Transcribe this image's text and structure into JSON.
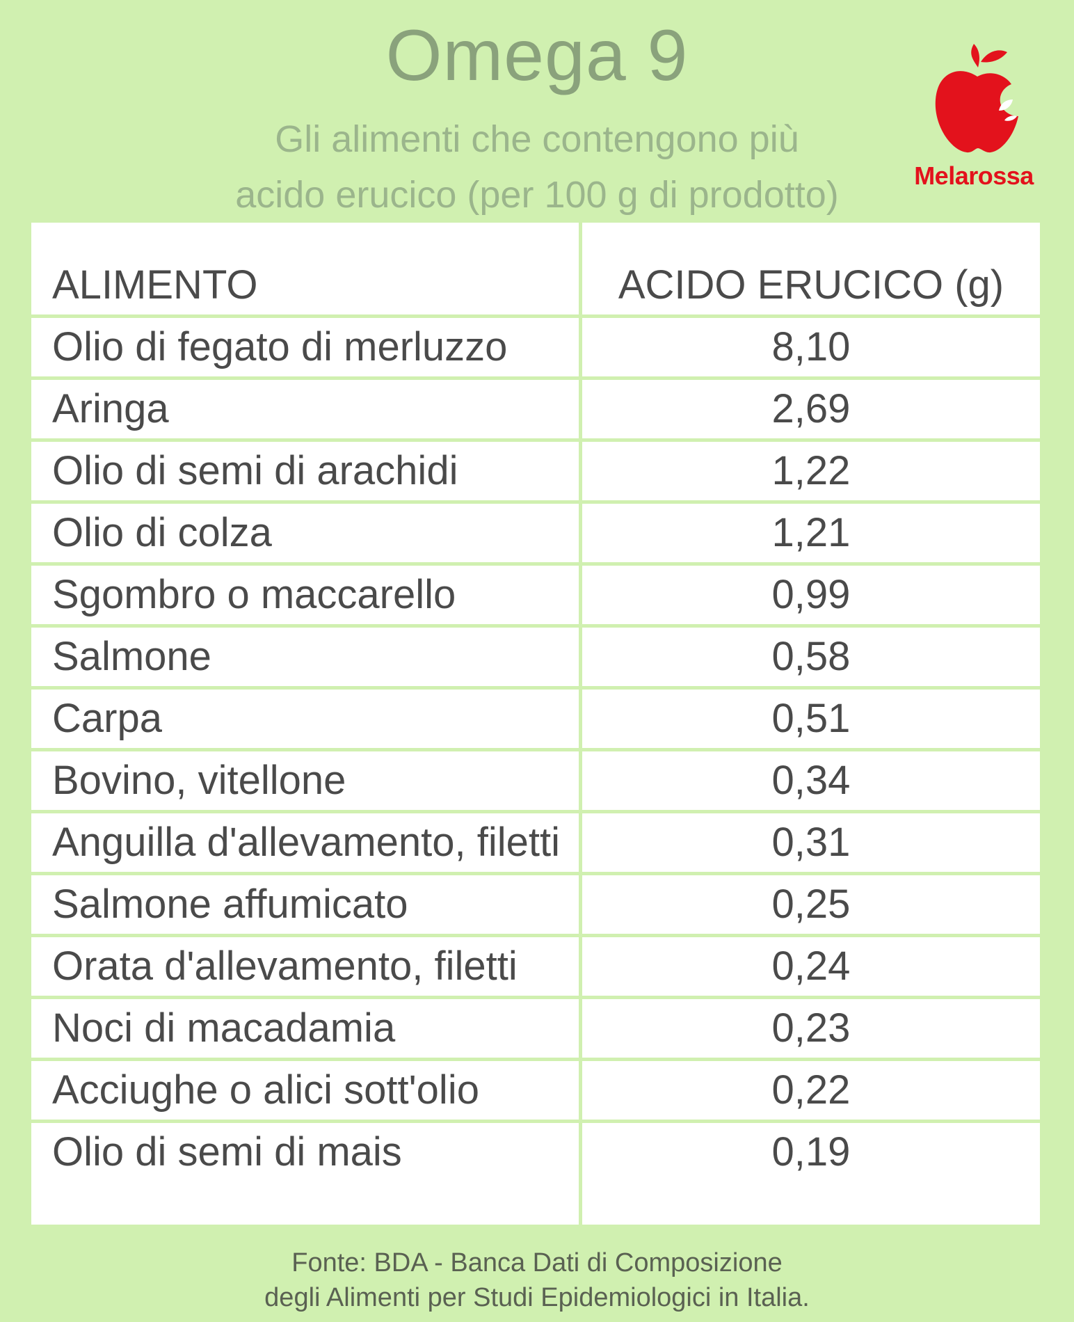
{
  "title": "Omega 9",
  "subtitle_line1": "Gli alimenti che contengono più",
  "subtitle_line2": "acido erucico (per 100 g di prodotto)",
  "logo": {
    "text": "Melarossa",
    "icon": "apple-icon",
    "color": "#e3121c"
  },
  "table": {
    "headers": [
      "ALIMENTO",
      "ACIDO ERUCICO (g)"
    ],
    "rows": [
      {
        "food": "Olio di fegato di merluzzo",
        "value": "8,10"
      },
      {
        "food": "Aringa",
        "value": "2,69"
      },
      {
        "food": "Olio di semi di arachidi",
        "value": "1,22"
      },
      {
        "food": "Olio di colza",
        "value": "1,21"
      },
      {
        "food": "Sgombro o maccarello",
        "value": "0,99"
      },
      {
        "food": "Salmone",
        "value": "0,58"
      },
      {
        "food": "Carpa",
        "value": "0,51"
      },
      {
        "food": "Bovino, vitellone",
        "value": "0,34"
      },
      {
        "food": "Anguilla d'allevamento, filetti",
        "value": "0,31"
      },
      {
        "food": "Salmone affumicato",
        "value": "0,25"
      },
      {
        "food": "Orata d'allevamento, filetti",
        "value": "0,24"
      },
      {
        "food": "Noci di macadamia",
        "value": "0,23"
      },
      {
        "food": "Acciughe o alici sott'olio",
        "value": "0,22"
      },
      {
        "food": "Olio di semi di mais",
        "value": "0,19"
      }
    ]
  },
  "source_line1": "Fonte: BDA - Banca Dati di Composizione",
  "source_line2": "degli Alimenti per Studi Epidemiologici in Italia.",
  "colors": {
    "background": "#d0f0b0",
    "title": "#8aa27c",
    "table": "#ffffff",
    "text": "#4a4a4a"
  }
}
